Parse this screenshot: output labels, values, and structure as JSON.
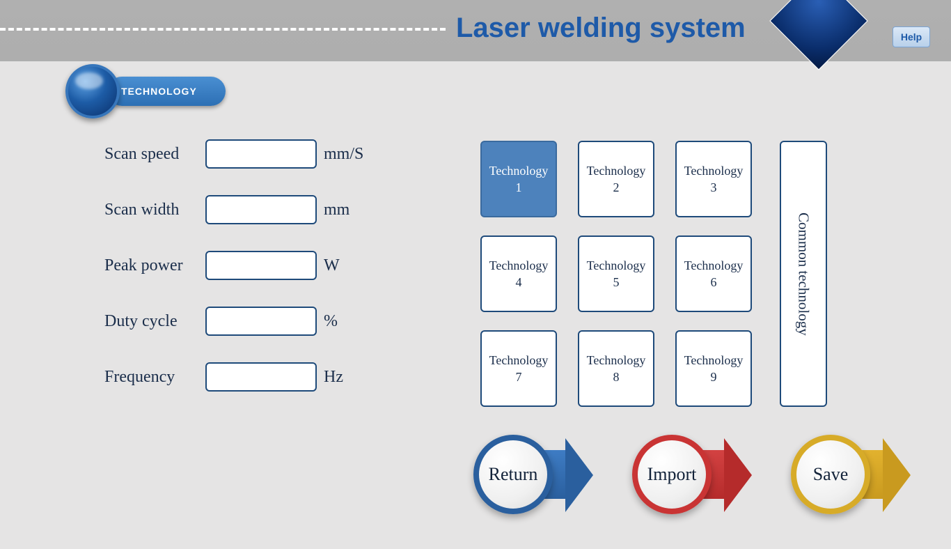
{
  "header": {
    "title": "Laser welding system",
    "help_label": "Help",
    "badge_label": "TECHNOLOGY",
    "colors": {
      "title_color": "#1e5aa8",
      "band_bg": "#aeaeae",
      "page_bg": "#e5e4e4"
    }
  },
  "params": [
    {
      "label": "Scan speed",
      "value": "",
      "unit": "mm/S"
    },
    {
      "label": "Scan width",
      "value": "",
      "unit": "mm"
    },
    {
      "label": "Peak power",
      "value": "",
      "unit": "W"
    },
    {
      "label": "Duty cycle",
      "value": "",
      "unit": "%"
    },
    {
      "label": "Frequency",
      "value": "",
      "unit": "Hz"
    }
  ],
  "tech": {
    "items": [
      {
        "label": "Technology",
        "num": "1",
        "selected": true
      },
      {
        "label": "Technology",
        "num": "2",
        "selected": false
      },
      {
        "label": "Technology",
        "num": "3",
        "selected": false
      },
      {
        "label": "Technology",
        "num": "4",
        "selected": false
      },
      {
        "label": "Technology",
        "num": "5",
        "selected": false
      },
      {
        "label": "Technology",
        "num": "6",
        "selected": false
      },
      {
        "label": "Technology",
        "num": "7",
        "selected": false
      },
      {
        "label": "Technology",
        "num": "8",
        "selected": false
      },
      {
        "label": "Technology",
        "num": "9",
        "selected": false
      }
    ],
    "common_label": "Common technology",
    "cell_border": "#1e4a7a",
    "selected_bg": "#4d82bc"
  },
  "actions": {
    "return": {
      "label": "Return",
      "color": "#2a5f9e"
    },
    "import": {
      "label": "Import",
      "color": "#c93434"
    },
    "save": {
      "label": "Save",
      "color": "#d7ab28"
    }
  }
}
